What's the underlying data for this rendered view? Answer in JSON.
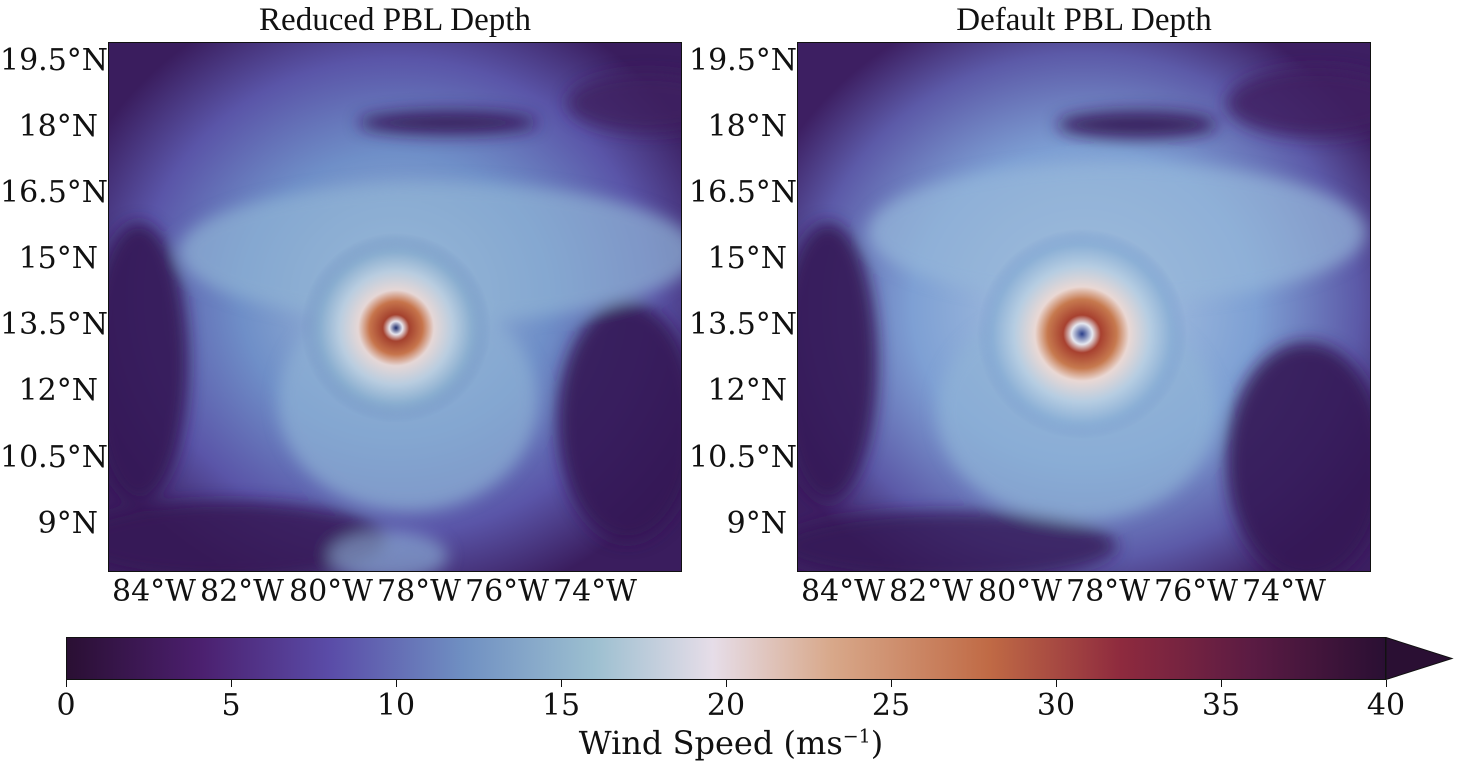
{
  "panels": [
    {
      "title": "Reduced PBL Depth"
    },
    {
      "title": "Default PBL Depth"
    }
  ],
  "lat_labels": [
    "19.5°N",
    "18°N",
    "16.5°N",
    "15°N",
    "13.5°N",
    "12°N",
    "10.5°N",
    "9°N"
  ],
  "lon_labels": [
    "84°W",
    "82°W",
    "80°W",
    "78°W",
    "76°W",
    "74°W"
  ],
  "colorbar": {
    "label": "Wind Speed (ms",
    "label_sup": "−1",
    "label_close": ")",
    "ticks": [
      "0",
      "5",
      "10",
      "15",
      "20",
      "25",
      "30",
      "35",
      "40"
    ],
    "min": 0,
    "max": 40,
    "extend": "max",
    "colors": [
      "#2a0f33",
      "#4b1f6e",
      "#5a4ca8",
      "#6f8fc2",
      "#9cbfd0",
      "#e6dde8",
      "#d8a88a",
      "#c06a45",
      "#8e2a3e",
      "#5a1b43",
      "#2a0f33"
    ]
  }
}
